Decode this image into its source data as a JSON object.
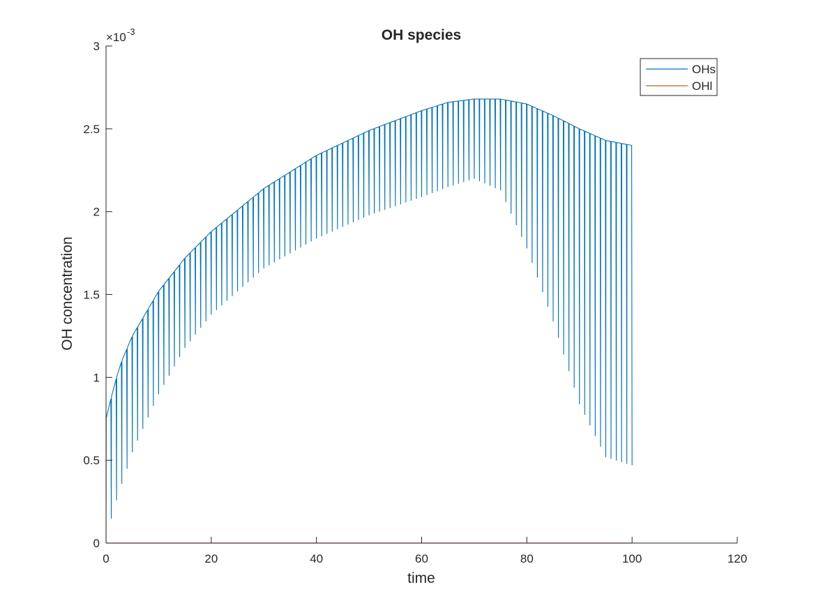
{
  "chart_data": {
    "type": "line",
    "title": "OH species",
    "xlabel": "time",
    "ylabel": "OH concentration",
    "xlim": [
      0,
      120
    ],
    "ylim": [
      0,
      0.003
    ],
    "x_ticks": [
      0,
      20,
      40,
      60,
      80,
      100,
      120
    ],
    "y_ticks": [
      0,
      0.0005,
      0.001,
      0.0015,
      0.002,
      0.0025,
      0.003
    ],
    "x_tick_labels": [
      "0",
      "20",
      "40",
      "60",
      "80",
      "100",
      "120"
    ],
    "y_tick_labels": [
      "0",
      "0.5",
      "1",
      "1.5",
      "2",
      "2.5",
      "3"
    ],
    "y_exponent_label": "×10",
    "y_exponent_power": "-3",
    "grid": false,
    "legend_position": "top-right",
    "series": [
      {
        "name": "OHs",
        "color": "#0072BD",
        "pattern": "periodic dosing",
        "cycle_count": 100,
        "cycle_period": 1,
        "peak_envelope": {
          "x": [
            0,
            1,
            2,
            3,
            5,
            10,
            15,
            20,
            30,
            40,
            50,
            60,
            65,
            70,
            75,
            80,
            85,
            90,
            95,
            100
          ],
          "y": [
            0.00075,
            0.00088,
            0.001,
            0.0011,
            0.00125,
            0.00152,
            0.00172,
            0.00188,
            0.00214,
            0.00234,
            0.00249,
            0.00261,
            0.00266,
            0.00268,
            0.00268,
            0.00265,
            0.00258,
            0.0025,
            0.00243,
            0.0024
          ]
        },
        "trough_envelope": {
          "x": [
            0,
            1,
            2,
            3,
            4,
            5,
            10,
            15,
            20,
            30,
            40,
            50,
            60,
            65,
            70,
            75,
            80,
            85,
            90,
            95,
            100
          ],
          "y": [
            0.0,
            0.00015,
            0.00026,
            0.00036,
            0.00045,
            0.00055,
            0.0009,
            0.00118,
            0.00138,
            0.00166,
            0.00184,
            0.00198,
            0.00209,
            0.00215,
            0.0022,
            0.00213,
            0.00178,
            0.00134,
            0.00084,
            0.00052,
            0.00047
          ]
        }
      },
      {
        "name": "OHl",
        "color": "#D95319",
        "x": [
          0,
          100
        ],
        "y": [
          0,
          0
        ]
      }
    ]
  }
}
